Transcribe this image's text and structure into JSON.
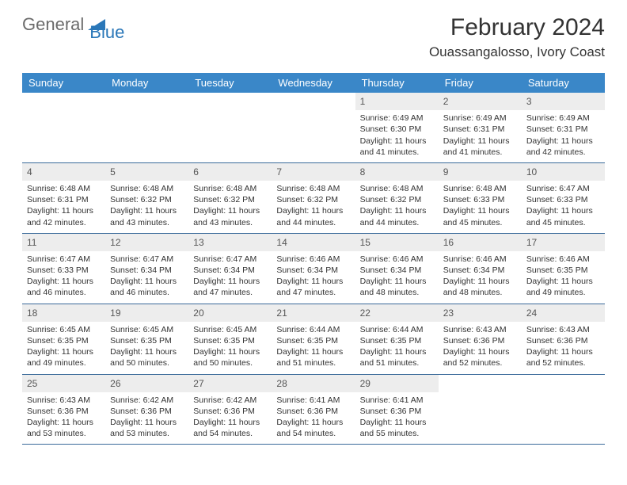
{
  "logo": {
    "text1": "General",
    "text2": "Blue"
  },
  "title": "February 2024",
  "location": "Ouassangalosso, Ivory Coast",
  "header_bg": "#3a87c8",
  "day_headers": [
    "Sunday",
    "Monday",
    "Tuesday",
    "Wednesday",
    "Thursday",
    "Friday",
    "Saturday"
  ],
  "weeks": [
    [
      null,
      null,
      null,
      null,
      {
        "n": "1",
        "sr": "Sunrise: 6:49 AM",
        "ss": "Sunset: 6:30 PM",
        "dl": "Daylight: 11 hours and 41 minutes."
      },
      {
        "n": "2",
        "sr": "Sunrise: 6:49 AM",
        "ss": "Sunset: 6:31 PM",
        "dl": "Daylight: 11 hours and 41 minutes."
      },
      {
        "n": "3",
        "sr": "Sunrise: 6:49 AM",
        "ss": "Sunset: 6:31 PM",
        "dl": "Daylight: 11 hours and 42 minutes."
      }
    ],
    [
      {
        "n": "4",
        "sr": "Sunrise: 6:48 AM",
        "ss": "Sunset: 6:31 PM",
        "dl": "Daylight: 11 hours and 42 minutes."
      },
      {
        "n": "5",
        "sr": "Sunrise: 6:48 AM",
        "ss": "Sunset: 6:32 PM",
        "dl": "Daylight: 11 hours and 43 minutes."
      },
      {
        "n": "6",
        "sr": "Sunrise: 6:48 AM",
        "ss": "Sunset: 6:32 PM",
        "dl": "Daylight: 11 hours and 43 minutes."
      },
      {
        "n": "7",
        "sr": "Sunrise: 6:48 AM",
        "ss": "Sunset: 6:32 PM",
        "dl": "Daylight: 11 hours and 44 minutes."
      },
      {
        "n": "8",
        "sr": "Sunrise: 6:48 AM",
        "ss": "Sunset: 6:32 PM",
        "dl": "Daylight: 11 hours and 44 minutes."
      },
      {
        "n": "9",
        "sr": "Sunrise: 6:48 AM",
        "ss": "Sunset: 6:33 PM",
        "dl": "Daylight: 11 hours and 45 minutes."
      },
      {
        "n": "10",
        "sr": "Sunrise: 6:47 AM",
        "ss": "Sunset: 6:33 PM",
        "dl": "Daylight: 11 hours and 45 minutes."
      }
    ],
    [
      {
        "n": "11",
        "sr": "Sunrise: 6:47 AM",
        "ss": "Sunset: 6:33 PM",
        "dl": "Daylight: 11 hours and 46 minutes."
      },
      {
        "n": "12",
        "sr": "Sunrise: 6:47 AM",
        "ss": "Sunset: 6:34 PM",
        "dl": "Daylight: 11 hours and 46 minutes."
      },
      {
        "n": "13",
        "sr": "Sunrise: 6:47 AM",
        "ss": "Sunset: 6:34 PM",
        "dl": "Daylight: 11 hours and 47 minutes."
      },
      {
        "n": "14",
        "sr": "Sunrise: 6:46 AM",
        "ss": "Sunset: 6:34 PM",
        "dl": "Daylight: 11 hours and 47 minutes."
      },
      {
        "n": "15",
        "sr": "Sunrise: 6:46 AM",
        "ss": "Sunset: 6:34 PM",
        "dl": "Daylight: 11 hours and 48 minutes."
      },
      {
        "n": "16",
        "sr": "Sunrise: 6:46 AM",
        "ss": "Sunset: 6:34 PM",
        "dl": "Daylight: 11 hours and 48 minutes."
      },
      {
        "n": "17",
        "sr": "Sunrise: 6:46 AM",
        "ss": "Sunset: 6:35 PM",
        "dl": "Daylight: 11 hours and 49 minutes."
      }
    ],
    [
      {
        "n": "18",
        "sr": "Sunrise: 6:45 AM",
        "ss": "Sunset: 6:35 PM",
        "dl": "Daylight: 11 hours and 49 minutes."
      },
      {
        "n": "19",
        "sr": "Sunrise: 6:45 AM",
        "ss": "Sunset: 6:35 PM",
        "dl": "Daylight: 11 hours and 50 minutes."
      },
      {
        "n": "20",
        "sr": "Sunrise: 6:45 AM",
        "ss": "Sunset: 6:35 PM",
        "dl": "Daylight: 11 hours and 50 minutes."
      },
      {
        "n": "21",
        "sr": "Sunrise: 6:44 AM",
        "ss": "Sunset: 6:35 PM",
        "dl": "Daylight: 11 hours and 51 minutes."
      },
      {
        "n": "22",
        "sr": "Sunrise: 6:44 AM",
        "ss": "Sunset: 6:35 PM",
        "dl": "Daylight: 11 hours and 51 minutes."
      },
      {
        "n": "23",
        "sr": "Sunrise: 6:43 AM",
        "ss": "Sunset: 6:36 PM",
        "dl": "Daylight: 11 hours and 52 minutes."
      },
      {
        "n": "24",
        "sr": "Sunrise: 6:43 AM",
        "ss": "Sunset: 6:36 PM",
        "dl": "Daylight: 11 hours and 52 minutes."
      }
    ],
    [
      {
        "n": "25",
        "sr": "Sunrise: 6:43 AM",
        "ss": "Sunset: 6:36 PM",
        "dl": "Daylight: 11 hours and 53 minutes."
      },
      {
        "n": "26",
        "sr": "Sunrise: 6:42 AM",
        "ss": "Sunset: 6:36 PM",
        "dl": "Daylight: 11 hours and 53 minutes."
      },
      {
        "n": "27",
        "sr": "Sunrise: 6:42 AM",
        "ss": "Sunset: 6:36 PM",
        "dl": "Daylight: 11 hours and 54 minutes."
      },
      {
        "n": "28",
        "sr": "Sunrise: 6:41 AM",
        "ss": "Sunset: 6:36 PM",
        "dl": "Daylight: 11 hours and 54 minutes."
      },
      {
        "n": "29",
        "sr": "Sunrise: 6:41 AM",
        "ss": "Sunset: 6:36 PM",
        "dl": "Daylight: 11 hours and 55 minutes."
      },
      null,
      null
    ]
  ]
}
